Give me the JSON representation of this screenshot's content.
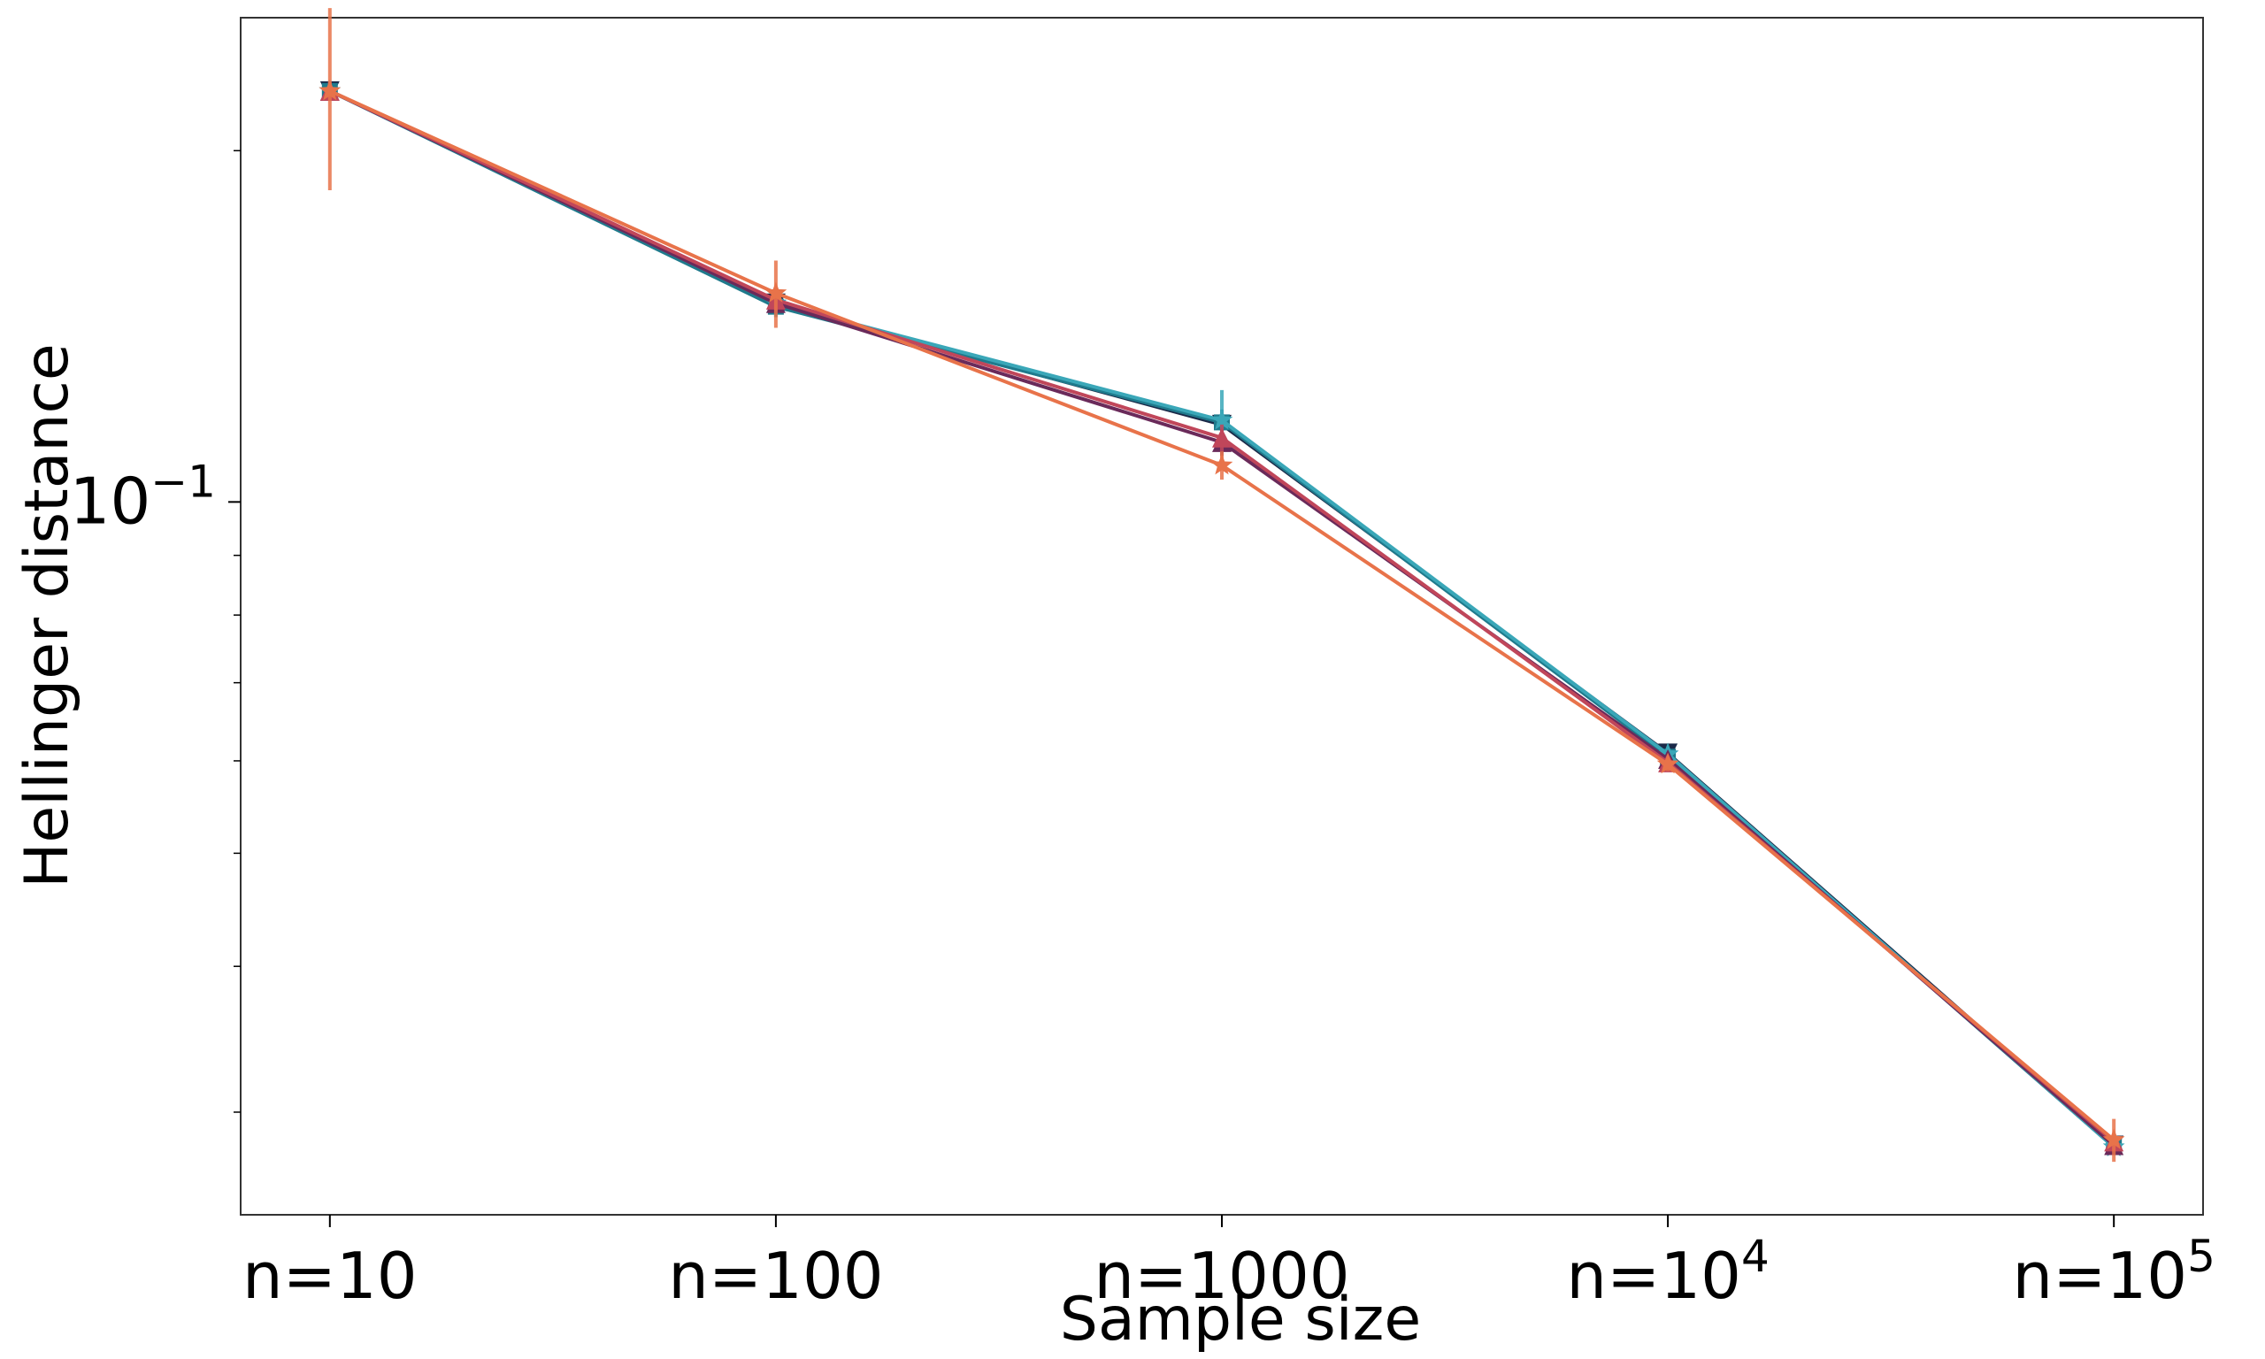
{
  "chart_data": {
    "type": "line",
    "xlabel": "Sample size",
    "ylabel": "Hellinger distance",
    "yscale": "log",
    "ylim": [
      0.0245,
      0.26
    ],
    "xlim": [
      -0.2,
      4.2
    ],
    "grid": false,
    "legend": "none",
    "categories": [
      {
        "base": "n=",
        "num": "10",
        "exp": ""
      },
      {
        "base": "n=",
        "num": "100",
        "exp": ""
      },
      {
        "base": "n=",
        "num": "1000",
        "exp": ""
      },
      {
        "base": "n=",
        "num": "10",
        "exp": "4"
      },
      {
        "base": "n=",
        "num": "10",
        "exp": "5"
      }
    ],
    "yticks": [
      {
        "value": 0.1,
        "base": "10",
        "exp": "−1"
      }
    ],
    "series": [
      {
        "color": "#1b2a49",
        "marker": "triangle-down",
        "values": [
          0.225,
          0.148,
          0.1165,
          0.0609,
          0.0281
        ],
        "err": [
          0.004,
          0.003,
          0.003,
          0.0008,
          0.0004
        ]
      },
      {
        "color": "#1f7a8c",
        "marker": "square",
        "values": [
          0.225,
          0.147,
          0.117,
          0.0605,
          0.028
        ],
        "err": [
          0.004,
          0.003,
          0.003,
          0.0008,
          0.0004
        ]
      },
      {
        "color": "#3aa7b8",
        "marker": "star",
        "values": [
          0.225,
          0.148,
          0.1175,
          0.0608,
          0.028
        ],
        "err": [
          0.004,
          0.003,
          0.0072,
          0.0008,
          0.0004
        ]
      },
      {
        "color": "#6a2a5a",
        "marker": "triangle-up",
        "values": [
          0.225,
          0.148,
          0.1125,
          0.0602,
          0.0281
        ],
        "err": [
          0.004,
          0.003,
          0.003,
          0.0008,
          0.0004
        ]
      },
      {
        "color": "#c0465a",
        "marker": "triangle-up",
        "values": [
          0.225,
          0.149,
          0.1135,
          0.0598,
          0.0283
        ],
        "err": [
          0.004,
          0.003,
          0.003,
          0.0008,
          0.0004
        ]
      },
      {
        "color": "#e8734a",
        "marker": "star",
        "values": [
          0.225,
          0.151,
          0.1075,
          0.0596,
          0.0284
        ],
        "err": [
          0.04,
          0.01,
          0.003,
          0.0008,
          0.0012
        ]
      }
    ]
  }
}
